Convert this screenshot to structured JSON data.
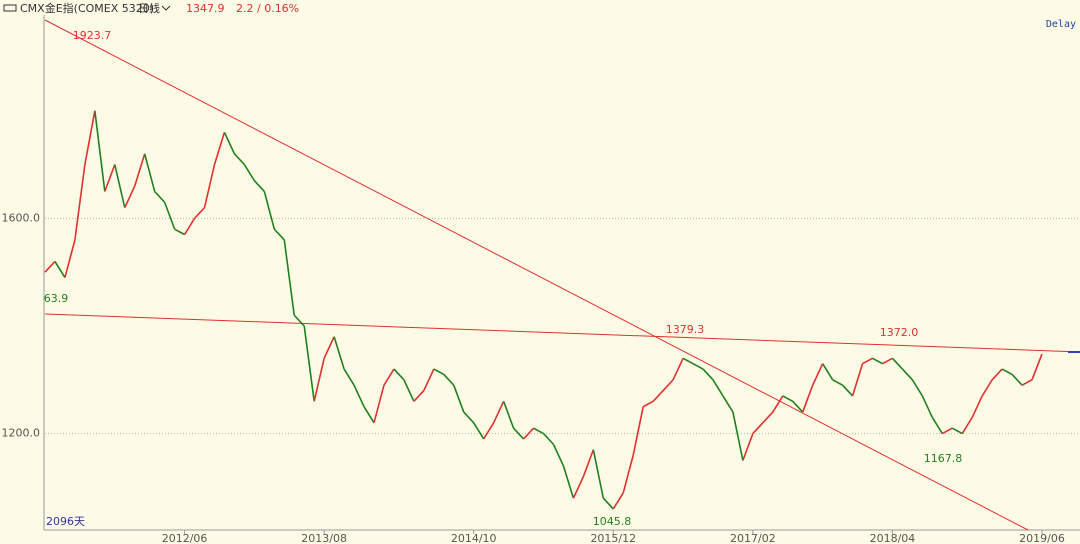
{
  "chart_data": {
    "type": "candle-line",
    "header": {
      "name": "CMX金E指(COMEX 5320)",
      "period": "日线",
      "price": "1347.9",
      "change": "2.2 / 0.16%",
      "status": "Delay",
      "span": "2096天"
    },
    "categories": [
      null,
      null,
      null,
      null,
      null,
      null,
      null,
      null,
      null,
      null,
      null,
      null,
      null,
      null,
      "2012/06",
      null,
      null,
      null,
      null,
      null,
      null,
      null,
      null,
      null,
      null,
      null,
      null,
      null,
      "2013/08",
      null,
      null,
      null,
      null,
      null,
      null,
      null,
      null,
      null,
      null,
      null,
      null,
      null,
      null,
      "2014/10",
      null,
      null,
      null,
      null,
      null,
      null,
      null,
      null,
      null,
      null,
      null,
      null,
      null,
      "2015/12",
      null,
      null,
      null,
      null,
      null,
      null,
      null,
      null,
      null,
      null,
      null,
      null,
      null,
      "2017/02",
      null,
      null,
      null,
      null,
      null,
      null,
      null,
      null,
      null,
      null,
      null,
      null,
      null,
      "2018/04",
      null,
      null,
      null,
      null,
      null,
      null,
      null,
      null,
      null,
      null,
      null,
      null,
      null,
      null,
      "2019/06"
    ],
    "values": [
      1500,
      1520,
      1490,
      1560,
      1700,
      1800,
      1650,
      1700,
      1620,
      1660,
      1720,
      1650,
      1630,
      1580,
      1570,
      1600,
      1620,
      1700,
      1760,
      1720,
      1700,
      1670,
      1650,
      1580,
      1560,
      1420,
      1400,
      1260,
      1340,
      1380,
      1320,
      1290,
      1250,
      1220,
      1290,
      1320,
      1300,
      1260,
      1280,
      1320,
      1310,
      1290,
      1240,
      1220,
      1190,
      1220,
      1260,
      1210,
      1190,
      1210,
      1200,
      1180,
      1140,
      1080,
      1120,
      1170,
      1080,
      1060,
      1090,
      1160,
      1250,
      1260,
      1280,
      1300,
      1340,
      1330,
      1320,
      1300,
      1270,
      1240,
      1150,
      1200,
      1220,
      1240,
      1270,
      1260,
      1240,
      1290,
      1330,
      1300,
      1290,
      1270,
      1330,
      1340,
      1330,
      1340,
      1320,
      1300,
      1270,
      1230,
      1200,
      1210,
      1200,
      1230,
      1270,
      1300,
      1320,
      1310,
      1290,
      1300,
      1347.9
    ],
    "up_color": "#e03030",
    "down_color": "#208020",
    "ylim": [
      1045,
      1978
    ],
    "yticks": [
      {
        "value": 1600,
        "label": "1600.0"
      },
      {
        "value": 1200,
        "label": "1200.0"
      }
    ],
    "annotations": [
      {
        "value": 1923.7,
        "label": "1923.7"
      },
      {
        "value": 63.9,
        "label": "63.9"
      },
      {
        "value": 1379.3,
        "label": "1379.3"
      },
      {
        "value": 1372,
        "label": "1372.0"
      },
      {
        "value": 1167.8,
        "label": "1167.8"
      },
      {
        "value": 1045.8,
        "label": "1045.8"
      }
    ],
    "grid": true
  }
}
